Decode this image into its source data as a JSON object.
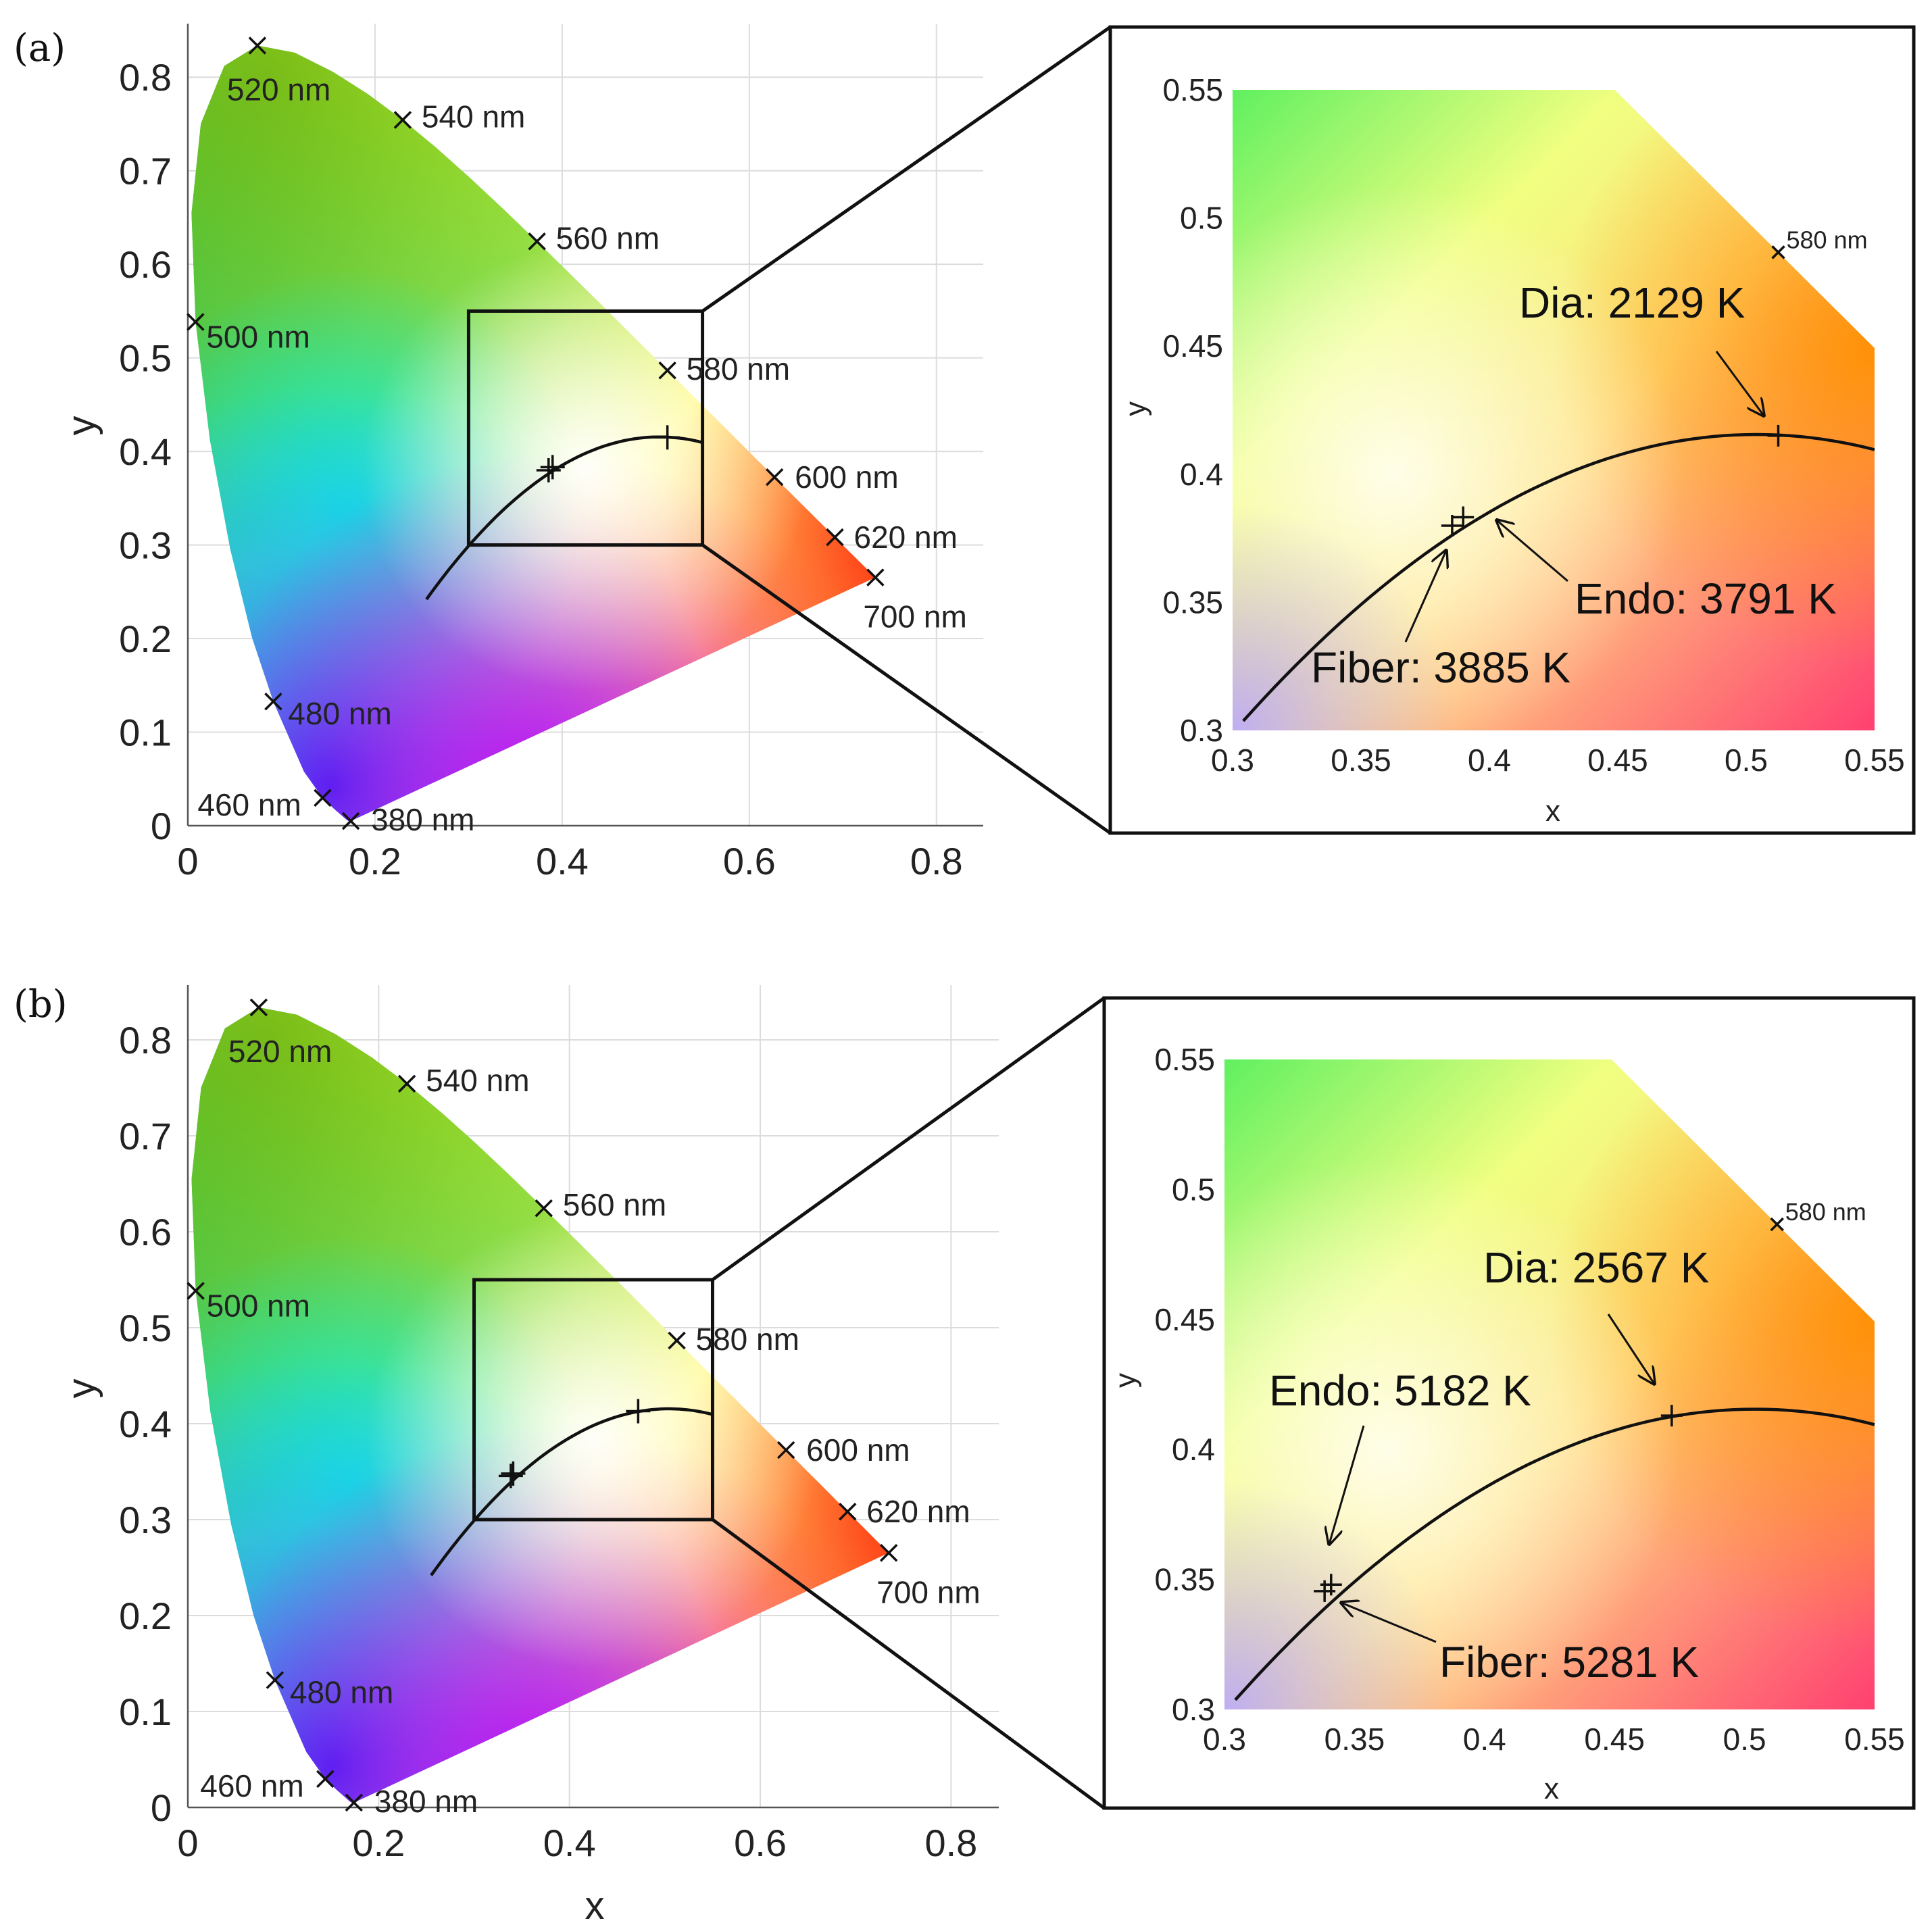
{
  "colors": {
    "curve": "#111111",
    "frame": "#111111",
    "grid": "#dcdcdc"
  },
  "chart_data": [
    {
      "id": "a-main",
      "panel_label": "(a)",
      "type": "scatter",
      "title": "",
      "xlabel": "",
      "ylabel": "y",
      "xlim": [
        0,
        0.85
      ],
      "ylim": [
        0,
        0.85
      ],
      "xticks": [
        "0",
        "0.2",
        "0.4",
        "0.6",
        "0.8"
      ],
      "yticks": [
        "0",
        "0.1",
        "0.2",
        "0.3",
        "0.4",
        "0.5",
        "0.6",
        "0.7",
        "0.8"
      ],
      "grid": true,
      "wavelength_markers": [
        {
          "label": "380 nm",
          "x": 0.1741,
          "y": 0.005
        },
        {
          "label": "460 nm",
          "x": 0.144,
          "y": 0.0297
        },
        {
          "label": "480 nm",
          "x": 0.0913,
          "y": 0.1327
        },
        {
          "label": "500 nm",
          "x": 0.0082,
          "y": 0.5384
        },
        {
          "label": "520 nm",
          "x": 0.0743,
          "y": 0.8338
        },
        {
          "label": "540 nm",
          "x": 0.2296,
          "y": 0.7543
        },
        {
          "label": "560 nm",
          "x": 0.3731,
          "y": 0.6245
        },
        {
          "label": "580 nm",
          "x": 0.5125,
          "y": 0.4866
        },
        {
          "label": "600 nm",
          "x": 0.627,
          "y": 0.3725
        },
        {
          "label": "620 nm",
          "x": 0.6915,
          "y": 0.3083
        },
        {
          "label": "700 nm",
          "x": 0.7347,
          "y": 0.2653
        }
      ],
      "zoom_box": {
        "x": [
          0.3,
          0.55
        ],
        "y": [
          0.3,
          0.55
        ]
      },
      "points": [
        {
          "name": "Fiber",
          "x": 0.3855,
          "y": 0.3799
        },
        {
          "name": "Endo",
          "x": 0.3898,
          "y": 0.3832
        },
        {
          "name": "Dia",
          "x": 0.5125,
          "y": 0.415
        }
      ]
    },
    {
      "id": "a-zoom",
      "type": "scatter",
      "title": "",
      "xlabel": "x",
      "ylabel": "y",
      "xlim": [
        0.3,
        0.55
      ],
      "ylim": [
        0.3,
        0.55
      ],
      "xticks": [
        "0.3",
        "0.35",
        "0.4",
        "0.45",
        "0.5",
        "0.55"
      ],
      "yticks": [
        "0.3",
        "0.35",
        "0.4",
        "0.45",
        "0.5",
        "0.55"
      ],
      "grid": false,
      "wavelength_markers": [
        {
          "label": "580 nm",
          "x": 0.5125,
          "y": 0.4866
        }
      ],
      "points": [
        {
          "name": "Fiber",
          "x": 0.3855,
          "y": 0.3799
        },
        {
          "name": "Endo",
          "x": 0.3898,
          "y": 0.3832
        },
        {
          "name": "Dia",
          "x": 0.5125,
          "y": 0.415
        }
      ],
      "annotations": [
        {
          "text": "Dia: 2129 K",
          "point": "Dia"
        },
        {
          "text": "Endo: 3791 K",
          "point": "Endo"
        },
        {
          "text": "Fiber: 3885 K",
          "point": "Fiber"
        }
      ]
    },
    {
      "id": "b-main",
      "panel_label": "(b)",
      "type": "scatter",
      "title": "",
      "xlabel": "x",
      "ylabel": "y",
      "xlim": [
        0,
        0.85
      ],
      "ylim": [
        0,
        0.85
      ],
      "xticks": [
        "0",
        "0.2",
        "0.4",
        "0.6",
        "0.8"
      ],
      "yticks": [
        "0",
        "0.1",
        "0.2",
        "0.3",
        "0.4",
        "0.5",
        "0.6",
        "0.7",
        "0.8"
      ],
      "grid": true,
      "wavelength_markers": [
        {
          "label": "380 nm",
          "x": 0.1741,
          "y": 0.005
        },
        {
          "label": "460 nm",
          "x": 0.144,
          "y": 0.0297
        },
        {
          "label": "480 nm",
          "x": 0.0913,
          "y": 0.1327
        },
        {
          "label": "500 nm",
          "x": 0.0082,
          "y": 0.5384
        },
        {
          "label": "520 nm",
          "x": 0.0743,
          "y": 0.8338
        },
        {
          "label": "540 nm",
          "x": 0.2296,
          "y": 0.7543
        },
        {
          "label": "560 nm",
          "x": 0.3731,
          "y": 0.6245
        },
        {
          "label": "580 nm",
          "x": 0.5125,
          "y": 0.4866
        },
        {
          "label": "600 nm",
          "x": 0.627,
          "y": 0.3725
        },
        {
          "label": "620 nm",
          "x": 0.6915,
          "y": 0.3083
        },
        {
          "label": "700 nm",
          "x": 0.7347,
          "y": 0.2653
        }
      ],
      "zoom_box": {
        "x": [
          0.3,
          0.55
        ],
        "y": [
          0.3,
          0.55
        ]
      },
      "points": [
        {
          "name": "Fiber",
          "x": 0.3385,
          "y": 0.3455
        },
        {
          "name": "Endo",
          "x": 0.341,
          "y": 0.348
        },
        {
          "name": "Dia",
          "x": 0.472,
          "y": 0.413
        }
      ]
    },
    {
      "id": "b-zoom",
      "type": "scatter",
      "title": "",
      "xlabel": "x",
      "ylabel": "y",
      "xlim": [
        0.3,
        0.55
      ],
      "ylim": [
        0.3,
        0.55
      ],
      "xticks": [
        "0.3",
        "0.35",
        "0.4",
        "0.45",
        "0.5",
        "0.55"
      ],
      "yticks": [
        "0.3",
        "0.35",
        "0.4",
        "0.45",
        "0.5",
        "0.55"
      ],
      "grid": false,
      "wavelength_markers": [
        {
          "label": "580 nm",
          "x": 0.5125,
          "y": 0.4866
        }
      ],
      "points": [
        {
          "name": "Fiber",
          "x": 0.3385,
          "y": 0.3455
        },
        {
          "name": "Endo",
          "x": 0.341,
          "y": 0.348
        },
        {
          "name": "Dia",
          "x": 0.472,
          "y": 0.413
        }
      ],
      "annotations": [
        {
          "text": "Dia: 2567 K",
          "point": "Dia"
        },
        {
          "text": "Endo: 5182 K",
          "point": "Endo"
        },
        {
          "text": "Fiber: 5281 K",
          "point": "Fiber"
        }
      ]
    }
  ]
}
